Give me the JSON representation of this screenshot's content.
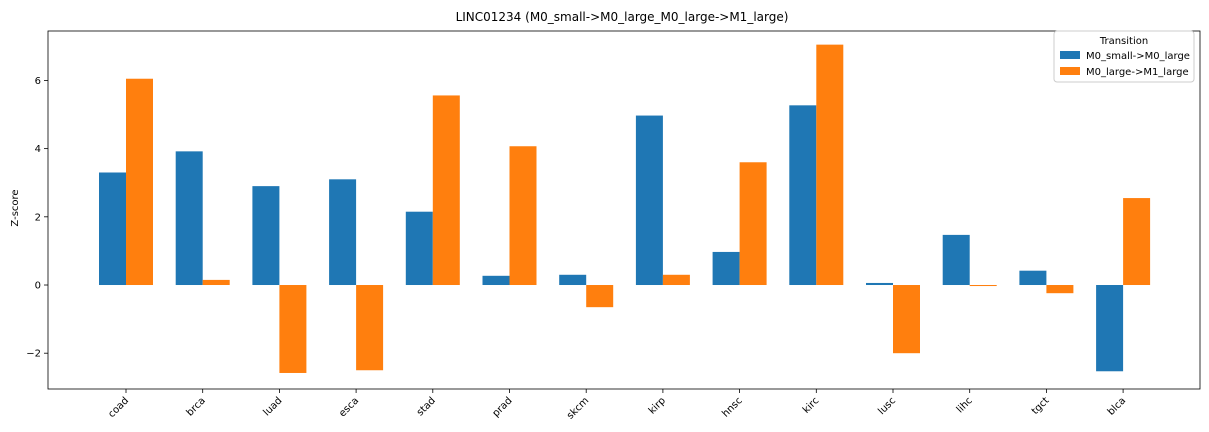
{
  "chart_data": {
    "type": "bar",
    "title": "LINC01234 (M0_small->M0_large_M0_large->M1_large)",
    "xlabel": "",
    "ylabel": "Z-score",
    "ylim": [
      -3.05,
      7.45
    ],
    "yticks": [
      -2,
      0,
      2,
      4,
      6
    ],
    "ytick_labels": [
      "−2",
      "0",
      "2",
      "4",
      "6"
    ],
    "categories": [
      "coad",
      "brca",
      "luad",
      "esca",
      "stad",
      "prad",
      "skcm",
      "kirp",
      "hnsc",
      "kirc",
      "lusc",
      "lihc",
      "tgct",
      "blca"
    ],
    "series": [
      {
        "name": "M0_small->M0_large",
        "color": "#1f77b4",
        "values": [
          3.3,
          3.92,
          2.9,
          3.1,
          2.15,
          0.27,
          0.3,
          4.97,
          0.97,
          5.27,
          0.06,
          1.47,
          0.42,
          -2.53
        ]
      },
      {
        "name": "M0_large->M1_large",
        "color": "#ff7f0e",
        "values": [
          6.05,
          0.15,
          -2.58,
          -2.5,
          5.56,
          4.07,
          -0.65,
          0.3,
          3.6,
          7.05,
          -2.0,
          -0.03,
          -0.24,
          2.55
        ]
      }
    ],
    "legend": {
      "title": "Transition",
      "position": "top-right"
    },
    "grid": false
  }
}
